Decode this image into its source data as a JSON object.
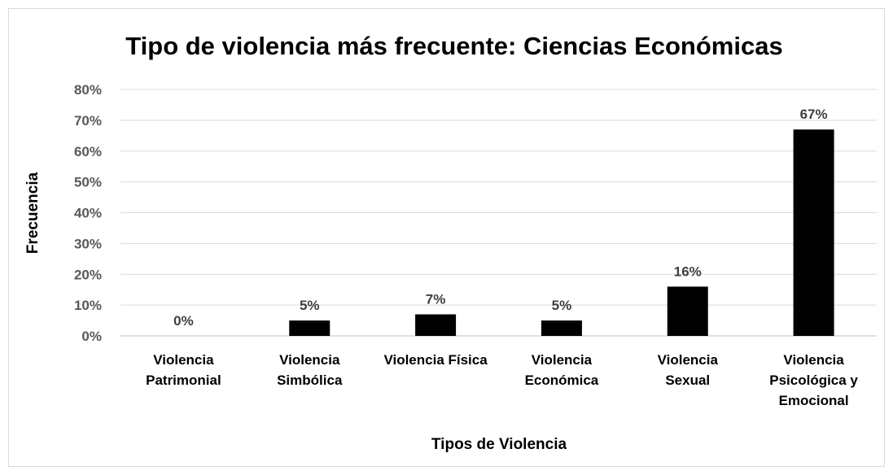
{
  "chart_data": {
    "type": "bar",
    "title": "Tipo de violencia más frecuente: Ciencias Económicas",
    "xlabel": "Tipos de Violencia",
    "ylabel": "Frecuencia",
    "categories": [
      [
        "Violencia",
        "Patrimonial"
      ],
      [
        "Violencia",
        "Simbólica"
      ],
      [
        "Violencia Física"
      ],
      [
        "Violencia",
        "Económica"
      ],
      [
        "Violencia",
        "Sexual"
      ],
      [
        "Violencia",
        "Psicológica y",
        "Emocional"
      ]
    ],
    "values": [
      0,
      5,
      7,
      5,
      16,
      67
    ],
    "data_labels": [
      "0%",
      "5%",
      "7%",
      "5%",
      "16%",
      "67%"
    ],
    "ylim": [
      0,
      80
    ],
    "yticks": [
      "0%",
      "10%",
      "20%",
      "30%",
      "40%",
      "50%",
      "60%",
      "70%",
      "80%"
    ],
    "bar_color": "#000000",
    "grid": true,
    "legend": "none"
  }
}
